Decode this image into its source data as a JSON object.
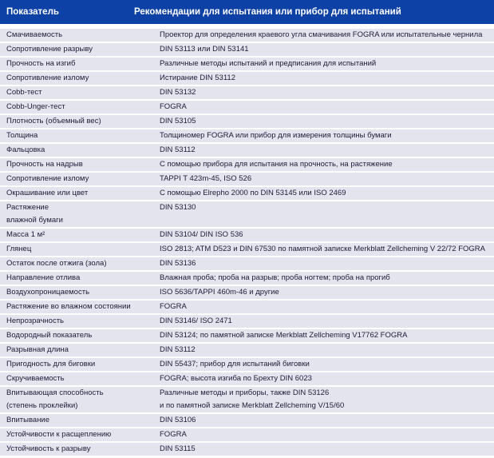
{
  "colors": {
    "header_bg": "#0d41a5",
    "header_text": "#ffffff",
    "row_bg": "#e4e4ee",
    "row_text": "#1c1c38",
    "separator": "#ffffff"
  },
  "table": {
    "header": {
      "col1": "Показатель",
      "col2": "Рекомендации для испытания или прибор для испытаний"
    },
    "rows": [
      {
        "indicator": "Смачиваемость",
        "value": "Проектор для определения краевого угла смачивания FOGRA или испытательные чернила"
      },
      {
        "indicator": "Сопротивление разрыву",
        "value": "DIN 53113 или DIN 53141"
      },
      {
        "indicator": "Прочность на изгиб",
        "value": "Различные методы испытаний и предписания для испытаний"
      },
      {
        "indicator": "Сопротивление излому",
        "value": "Истирание DIN 53112"
      },
      {
        "indicator": "Cobb-тест",
        "value": "DIN 53132"
      },
      {
        "indicator": "Cobb-Unger-тест",
        "value": "FOGRA"
      },
      {
        "indicator": "Плотность (объемный вес)",
        "value": "DIN 53105"
      },
      {
        "indicator": "Толщина",
        "value": "Толщиномер FOGRA или прибор для измерения толщины бумаги"
      },
      {
        "indicator": "Фальцовка",
        "value": "DIN 53112"
      },
      {
        "indicator": "Прочность на надрыв",
        "value": "С помощью прибора для испытания на прочность, на растяжение"
      },
      {
        "indicator": "Сопротивление излому",
        "value": "TAPPI T 423m-45, ISO 526"
      },
      {
        "indicator": "Окрашивание или цвет",
        "value": "С помощью Elrepho 2000 по DIN 53145 или ISO 2469"
      },
      {
        "indicator": "Растяжение\nвлажной бумаги",
        "value": "DIN 53130"
      },
      {
        "indicator": "Масса 1 м²",
        "value": "DIN 53104/ DIN ISO 536"
      },
      {
        "indicator": "Глянец",
        "value": "ISO 2813; ATM D523 и DIN 67530 по памятной записке Merkblatt Zellcheming V 22/72 FOGRA"
      },
      {
        "indicator": "Остаток после отжига (зола)",
        "value": "DIN 53136"
      },
      {
        "indicator": "Направление отлива",
        "value": "Влажная проба; проба на разрыв; проба ногтем; проба на прогиб"
      },
      {
        "indicator": "Воздухопроницаемость",
        "value": "ISO 5636/TAPPI 460m-46 и другие"
      },
      {
        "indicator": "Растяжение во влажном состоянии",
        "value": "FOGRA"
      },
      {
        "indicator": "Непрозрачность",
        "value": "DIN 53146/ ISO 2471"
      },
      {
        "indicator": "Водородный показатель",
        "value": "DIN 53124; по памятной записке Merkblatt Zellcheming V17762 FOGRA"
      },
      {
        "indicator": "Разрывная длина",
        "value": "DIN 53112"
      },
      {
        "indicator": "Пригодность для биговки",
        "value": "DIN 55437; прибор для испытаний биговки"
      },
      {
        "indicator": "Скручиваемость",
        "value": "FOGRA; высота изгиба по Брехту DIN 6023"
      },
      {
        "indicator": "Впитывающая способность\n(степень проклейки)",
        "value": "Различные методы и приборы, также DIN 53126\nи по памятной записке Merkblatt Zellcheming V/15/60"
      },
      {
        "indicator": "Впитывание",
        "value": "DIN 53106"
      },
      {
        "indicator": "Устойчивости к расщеплению",
        "value": "FOGRA"
      },
      {
        "indicator": "Устойчивость к разрыву",
        "value": "DIN 53115"
      }
    ]
  }
}
